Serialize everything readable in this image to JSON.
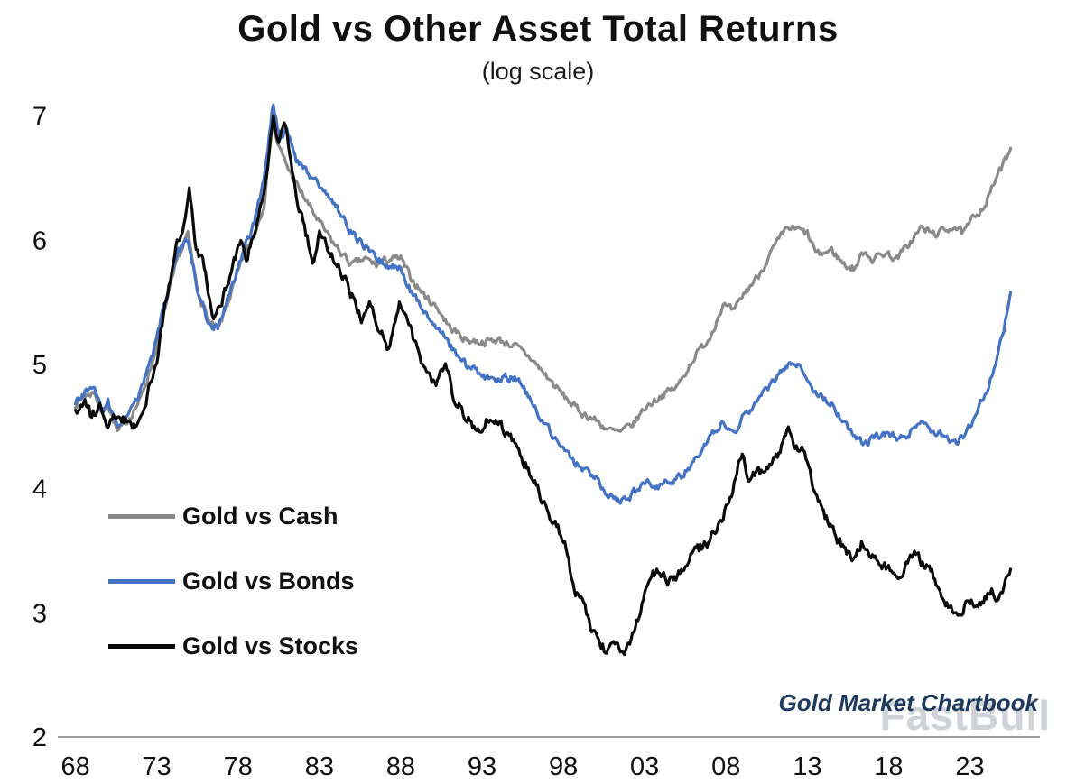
{
  "chart_data": {
    "type": "line",
    "title": "Gold vs Other Asset Total Returns",
    "subtitle": "(log scale)",
    "xlabel": "",
    "ylabel": "",
    "grid": false,
    "legend_position": "inside-left",
    "xlim": [
      1967.8,
      2027.3
    ],
    "ylim": [
      2,
      7.15
    ],
    "y_ticks": [
      2,
      3,
      4,
      5,
      6,
      7
    ],
    "x_ticks": [
      {
        "year": 1968,
        "label": "68"
      },
      {
        "year": 1973,
        "label": "73"
      },
      {
        "year": 1978,
        "label": "78"
      },
      {
        "year": 1983,
        "label": "83"
      },
      {
        "year": 1988,
        "label": "88"
      },
      {
        "year": 1993,
        "label": "93"
      },
      {
        "year": 1998,
        "label": "98"
      },
      {
        "year": 2003,
        "label": "03"
      },
      {
        "year": 2008,
        "label": "08"
      },
      {
        "year": 2013,
        "label": "13"
      },
      {
        "year": 2018,
        "label": "18"
      },
      {
        "year": 2023,
        "label": "23"
      }
    ],
    "noise": {
      "seed": 7,
      "amplitudes": [
        0.055,
        0.055,
        0.075
      ]
    },
    "series": [
      {
        "name": "Gold vs Cash",
        "color": "#8a8a8a",
        "anchors": [
          [
            1968,
            4.68
          ],
          [
            1968.6,
            4.75
          ],
          [
            1969.2,
            4.78
          ],
          [
            1969.6,
            4.6
          ],
          [
            1970,
            4.68
          ],
          [
            1970.6,
            4.45
          ],
          [
            1971.2,
            4.55
          ],
          [
            1972,
            4.72
          ],
          [
            1972.8,
            5.05
          ],
          [
            1973.5,
            5.45
          ],
          [
            1974.3,
            5.85
          ],
          [
            1974.9,
            6.05
          ],
          [
            1975.5,
            5.6
          ],
          [
            1976.3,
            5.32
          ],
          [
            1976.8,
            5.28
          ],
          [
            1977.5,
            5.55
          ],
          [
            1978.3,
            5.85
          ],
          [
            1979,
            6.05
          ],
          [
            1979.6,
            6.3
          ],
          [
            1980.1,
            6.95
          ],
          [
            1980.5,
            6.75
          ],
          [
            1981,
            6.6
          ],
          [
            1981.8,
            6.4
          ],
          [
            1982.5,
            6.25
          ],
          [
            1983.2,
            6.1
          ],
          [
            1984,
            5.95
          ],
          [
            1985,
            5.8
          ],
          [
            1985.8,
            5.85
          ],
          [
            1986.5,
            5.8
          ],
          [
            1987.3,
            5.85
          ],
          [
            1988,
            5.85
          ],
          [
            1988.6,
            5.7
          ],
          [
            1989.5,
            5.55
          ],
          [
            1990.3,
            5.45
          ],
          [
            1991,
            5.3
          ],
          [
            1992,
            5.2
          ],
          [
            1993,
            5.18
          ],
          [
            1994,
            5.2
          ],
          [
            1995,
            5.15
          ],
          [
            1996,
            5.05
          ],
          [
            1997,
            4.9
          ],
          [
            1998,
            4.75
          ],
          [
            1999,
            4.62
          ],
          [
            2000,
            4.55
          ],
          [
            2000.8,
            4.47
          ],
          [
            2001.5,
            4.45
          ],
          [
            2002.3,
            4.52
          ],
          [
            2003,
            4.65
          ],
          [
            2004,
            4.75
          ],
          [
            2005,
            4.82
          ],
          [
            2006,
            5.05
          ],
          [
            2007,
            5.22
          ],
          [
            2007.8,
            5.48
          ],
          [
            2008.5,
            5.42
          ],
          [
            2009,
            5.55
          ],
          [
            2010,
            5.72
          ],
          [
            2011,
            5.95
          ],
          [
            2011.8,
            6.1
          ],
          [
            2012.5,
            6.08
          ],
          [
            2013,
            6.05
          ],
          [
            2013.6,
            5.88
          ],
          [
            2014.5,
            5.92
          ],
          [
            2015.3,
            5.8
          ],
          [
            2015.9,
            5.77
          ],
          [
            2016.5,
            5.92
          ],
          [
            2017,
            5.85
          ],
          [
            2017.8,
            5.9
          ],
          [
            2018.5,
            5.85
          ],
          [
            2019.3,
            5.98
          ],
          [
            2020,
            6.1
          ],
          [
            2020.8,
            6.05
          ],
          [
            2021.5,
            6.08
          ],
          [
            2022,
            6.12
          ],
          [
            2022.6,
            6.05
          ],
          [
            2023.3,
            6.2
          ],
          [
            2024,
            6.3
          ],
          [
            2024.6,
            6.5
          ],
          [
            2025.1,
            6.62
          ],
          [
            2025.5,
            6.75
          ]
        ]
      },
      {
        "name": "Gold vs Bonds",
        "color": "#4472c4",
        "anchors": [
          [
            1968,
            4.7
          ],
          [
            1968.6,
            4.78
          ],
          [
            1969.2,
            4.8
          ],
          [
            1969.6,
            4.62
          ],
          [
            1970,
            4.7
          ],
          [
            1970.6,
            4.48
          ],
          [
            1971.2,
            4.58
          ],
          [
            1972,
            4.78
          ],
          [
            1972.8,
            5.1
          ],
          [
            1973.5,
            5.5
          ],
          [
            1974.3,
            5.9
          ],
          [
            1974.9,
            6.0
          ],
          [
            1975.5,
            5.62
          ],
          [
            1976.3,
            5.3
          ],
          [
            1976.8,
            5.3
          ],
          [
            1977.5,
            5.6
          ],
          [
            1978.3,
            5.9
          ],
          [
            1979,
            6.15
          ],
          [
            1979.6,
            6.5
          ],
          [
            1980.15,
            7.1
          ],
          [
            1980.6,
            6.8
          ],
          [
            1981,
            6.9
          ],
          [
            1981.6,
            6.65
          ],
          [
            1982.3,
            6.55
          ],
          [
            1983,
            6.45
          ],
          [
            1984,
            6.28
          ],
          [
            1985,
            6.05
          ],
          [
            1985.8,
            5.95
          ],
          [
            1986.5,
            5.85
          ],
          [
            1987.3,
            5.8
          ],
          [
            1988,
            5.78
          ],
          [
            1988.6,
            5.6
          ],
          [
            1989.5,
            5.42
          ],
          [
            1990.3,
            5.3
          ],
          [
            1991,
            5.15
          ],
          [
            1992,
            5.0
          ],
          [
            1993,
            4.92
          ],
          [
            1993.8,
            4.85
          ],
          [
            1994.5,
            4.9
          ],
          [
            1995.3,
            4.88
          ],
          [
            1996,
            4.7
          ],
          [
            1997,
            4.5
          ],
          [
            1998,
            4.3
          ],
          [
            1999,
            4.18
          ],
          [
            2000,
            4.08
          ],
          [
            2000.8,
            3.95
          ],
          [
            2001.5,
            3.89
          ],
          [
            2002.2,
            3.95
          ],
          [
            2003,
            4.05
          ],
          [
            2003.8,
            4.02
          ],
          [
            2004.5,
            4.05
          ],
          [
            2005.3,
            4.1
          ],
          [
            2006,
            4.22
          ],
          [
            2007,
            4.4
          ],
          [
            2007.8,
            4.55
          ],
          [
            2008.5,
            4.45
          ],
          [
            2009,
            4.58
          ],
          [
            2010,
            4.72
          ],
          [
            2011,
            4.88
          ],
          [
            2011.8,
            5.0
          ],
          [
            2012.3,
            5.02
          ],
          [
            2013,
            4.88
          ],
          [
            2013.6,
            4.75
          ],
          [
            2014.5,
            4.68
          ],
          [
            2015.3,
            4.52
          ],
          [
            2016,
            4.4
          ],
          [
            2016.6,
            4.37
          ],
          [
            2017.3,
            4.42
          ],
          [
            2018,
            4.45
          ],
          [
            2018.6,
            4.4
          ],
          [
            2019.3,
            4.45
          ],
          [
            2020,
            4.52
          ],
          [
            2020.8,
            4.45
          ],
          [
            2021.5,
            4.42
          ],
          [
            2022.2,
            4.38
          ],
          [
            2022.8,
            4.45
          ],
          [
            2023.4,
            4.6
          ],
          [
            2024,
            4.78
          ],
          [
            2024.6,
            5.0
          ],
          [
            2025.1,
            5.3
          ],
          [
            2025.5,
            5.6
          ]
        ]
      },
      {
        "name": "Gold vs Stocks",
        "color": "#0a0a0a",
        "anchors": [
          [
            1968,
            4.6
          ],
          [
            1968.5,
            4.72
          ],
          [
            1969,
            4.58
          ],
          [
            1969.5,
            4.68
          ],
          [
            1970,
            4.52
          ],
          [
            1970.5,
            4.6
          ],
          [
            1971,
            4.55
          ],
          [
            1971.6,
            4.5
          ],
          [
            1972.3,
            4.68
          ],
          [
            1973,
            5.05
          ],
          [
            1973.6,
            5.55
          ],
          [
            1974.2,
            5.95
          ],
          [
            1974.7,
            6.15
          ],
          [
            1975,
            6.4
          ],
          [
            1975.4,
            5.95
          ],
          [
            1975.9,
            5.8
          ],
          [
            1976.5,
            5.35
          ],
          [
            1977,
            5.5
          ],
          [
            1977.6,
            5.75
          ],
          [
            1978.1,
            6.0
          ],
          [
            1978.5,
            5.85
          ],
          [
            1979,
            6.05
          ],
          [
            1979.6,
            6.4
          ],
          [
            1980.15,
            7.0
          ],
          [
            1980.5,
            6.8
          ],
          [
            1980.9,
            6.95
          ],
          [
            1981.5,
            6.4
          ],
          [
            1982,
            6.15
          ],
          [
            1982.6,
            5.85
          ],
          [
            1983,
            6.05
          ],
          [
            1983.6,
            5.92
          ],
          [
            1984.3,
            5.75
          ],
          [
            1985,
            5.55
          ],
          [
            1985.6,
            5.35
          ],
          [
            1986.1,
            5.48
          ],
          [
            1986.7,
            5.28
          ],
          [
            1987.3,
            5.12
          ],
          [
            1987.9,
            5.5
          ],
          [
            1988.4,
            5.35
          ],
          [
            1989,
            5.12
          ],
          [
            1989.6,
            4.92
          ],
          [
            1990.2,
            4.82
          ],
          [
            1990.7,
            5.0
          ],
          [
            1991.3,
            4.72
          ],
          [
            1992,
            4.58
          ],
          [
            1992.8,
            4.45
          ],
          [
            1993.5,
            4.58
          ],
          [
            1994.2,
            4.5
          ],
          [
            1995,
            4.35
          ],
          [
            1996,
            4.12
          ],
          [
            1997,
            3.82
          ],
          [
            1997.6,
            3.72
          ],
          [
            1998.2,
            3.5
          ],
          [
            1998.7,
            3.15
          ],
          [
            1999.2,
            3.1
          ],
          [
            1999.7,
            2.88
          ],
          [
            2000.2,
            2.78
          ],
          [
            2000.7,
            2.68
          ],
          [
            2001.2,
            2.78
          ],
          [
            2001.7,
            2.7
          ],
          [
            2002.2,
            2.78
          ],
          [
            2002.8,
            3.05
          ],
          [
            2003.4,
            3.3
          ],
          [
            2003.9,
            3.35
          ],
          [
            2004.5,
            3.25
          ],
          [
            2005.2,
            3.32
          ],
          [
            2006,
            3.5
          ],
          [
            2006.8,
            3.55
          ],
          [
            2007.5,
            3.7
          ],
          [
            2008.2,
            3.9
          ],
          [
            2008.7,
            4.15
          ],
          [
            2009,
            4.32
          ],
          [
            2009.4,
            4.02
          ],
          [
            2009.9,
            4.15
          ],
          [
            2010.4,
            4.1
          ],
          [
            2010.9,
            4.22
          ],
          [
            2011.4,
            4.32
          ],
          [
            2011.8,
            4.48
          ],
          [
            2012.2,
            4.3
          ],
          [
            2012.6,
            4.35
          ],
          [
            2013.1,
            4.18
          ],
          [
            2013.6,
            3.9
          ],
          [
            2014.2,
            3.75
          ],
          [
            2014.8,
            3.6
          ],
          [
            2015.4,
            3.5
          ],
          [
            2015.9,
            3.45
          ],
          [
            2016.4,
            3.58
          ],
          [
            2016.9,
            3.45
          ],
          [
            2017.5,
            3.38
          ],
          [
            2018.1,
            3.35
          ],
          [
            2018.6,
            3.3
          ],
          [
            2019.1,
            3.38
          ],
          [
            2019.6,
            3.48
          ],
          [
            2020.1,
            3.4
          ],
          [
            2020.6,
            3.35
          ],
          [
            2021.2,
            3.15
          ],
          [
            2021.8,
            3.05
          ],
          [
            2022.3,
            2.98
          ],
          [
            2022.8,
            3.1
          ],
          [
            2023.3,
            3.05
          ],
          [
            2023.8,
            3.12
          ],
          [
            2024.3,
            3.18
          ],
          [
            2024.8,
            3.1
          ],
          [
            2025.2,
            3.28
          ],
          [
            2025.5,
            3.35
          ]
        ]
      }
    ]
  },
  "footer": {
    "attribution": "Gold Market Chartbook",
    "watermark": "FastBull"
  }
}
